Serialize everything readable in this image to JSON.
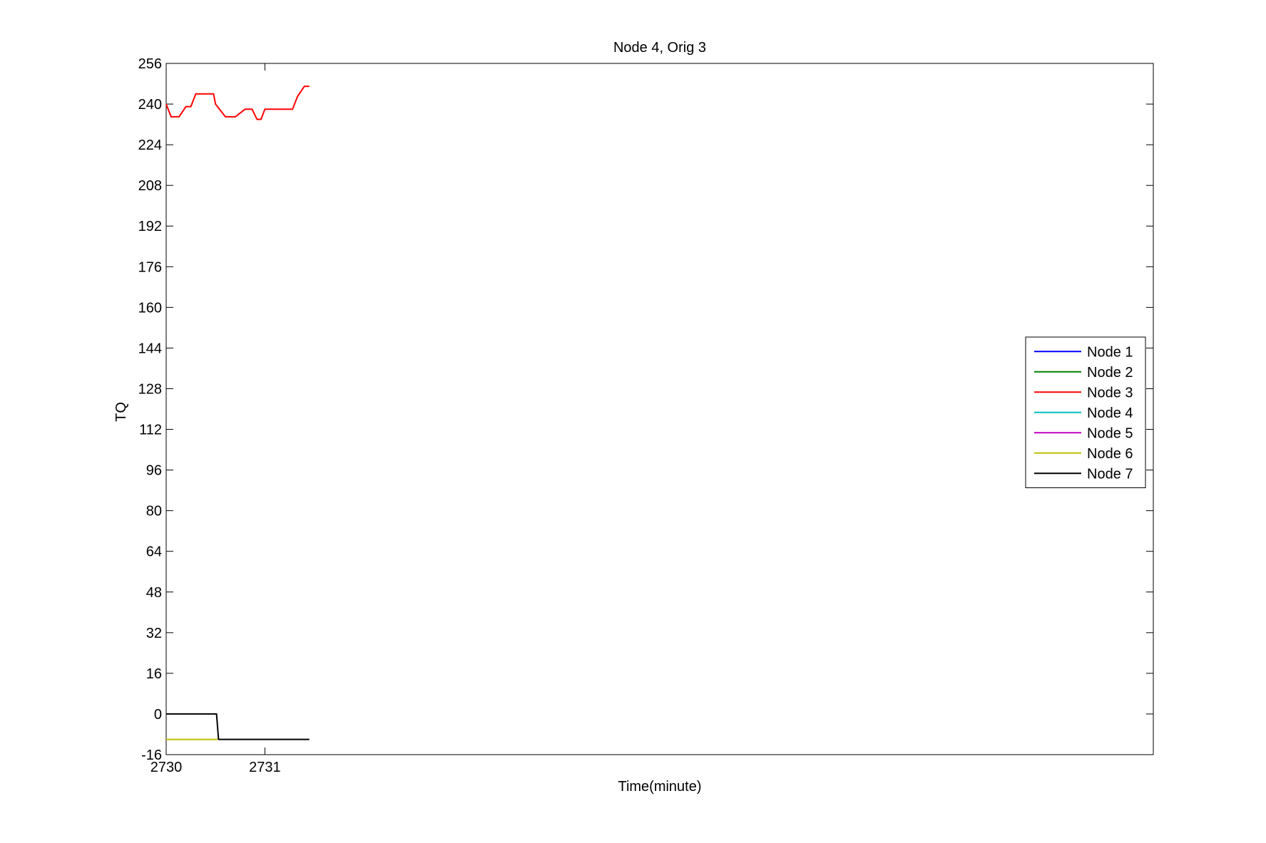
{
  "chart_data": {
    "type": "line",
    "title": "Node 4, Orig 3",
    "xlabel": "Time(minute)",
    "ylabel": "TQ",
    "xlim": [
      2730,
      2740
    ],
    "ylim": [
      -16,
      256
    ],
    "xticks": [
      2730,
      2731
    ],
    "yticks": [
      -16,
      0,
      16,
      32,
      48,
      64,
      80,
      96,
      112,
      128,
      144,
      160,
      176,
      192,
      208,
      224,
      240,
      256
    ],
    "grid": false,
    "legend_position": "right",
    "series": [
      {
        "name": "Node  1",
        "color": "#0000ff",
        "x": [],
        "y": []
      },
      {
        "name": "Node  2",
        "color": "#008000",
        "x": [],
        "y": []
      },
      {
        "name": "Node  3",
        "color": "#ff0000",
        "x": [
          2730.0,
          2730.05,
          2730.13,
          2730.2,
          2730.25,
          2730.3,
          2730.35,
          2730.48,
          2730.5,
          2730.6,
          2730.67,
          2730.7,
          2730.8,
          2730.87,
          2730.92,
          2730.96,
          2731.0,
          2731.28,
          2731.33,
          2731.4,
          2731.45
        ],
        "y": [
          240,
          235,
          235,
          239,
          239,
          244,
          244,
          244,
          240,
          235,
          235,
          235,
          238,
          238,
          234,
          234,
          238,
          238,
          243,
          247,
          247
        ]
      },
      {
        "name": "Node  4",
        "color": "#00bfbf",
        "x": [],
        "y": []
      },
      {
        "name": "Node  5",
        "color": "#bf00bf",
        "x": [],
        "y": []
      },
      {
        "name": "Node  6",
        "color": "#bfbf00",
        "x": [
          2730.0,
          2730.52
        ],
        "y": [
          -10,
          -10
        ]
      },
      {
        "name": "Node  7",
        "color": "#000000",
        "x": [
          2730.0,
          2730.51,
          2730.53,
          2731.45
        ],
        "y": [
          0,
          0,
          -10,
          -10
        ]
      }
    ]
  }
}
